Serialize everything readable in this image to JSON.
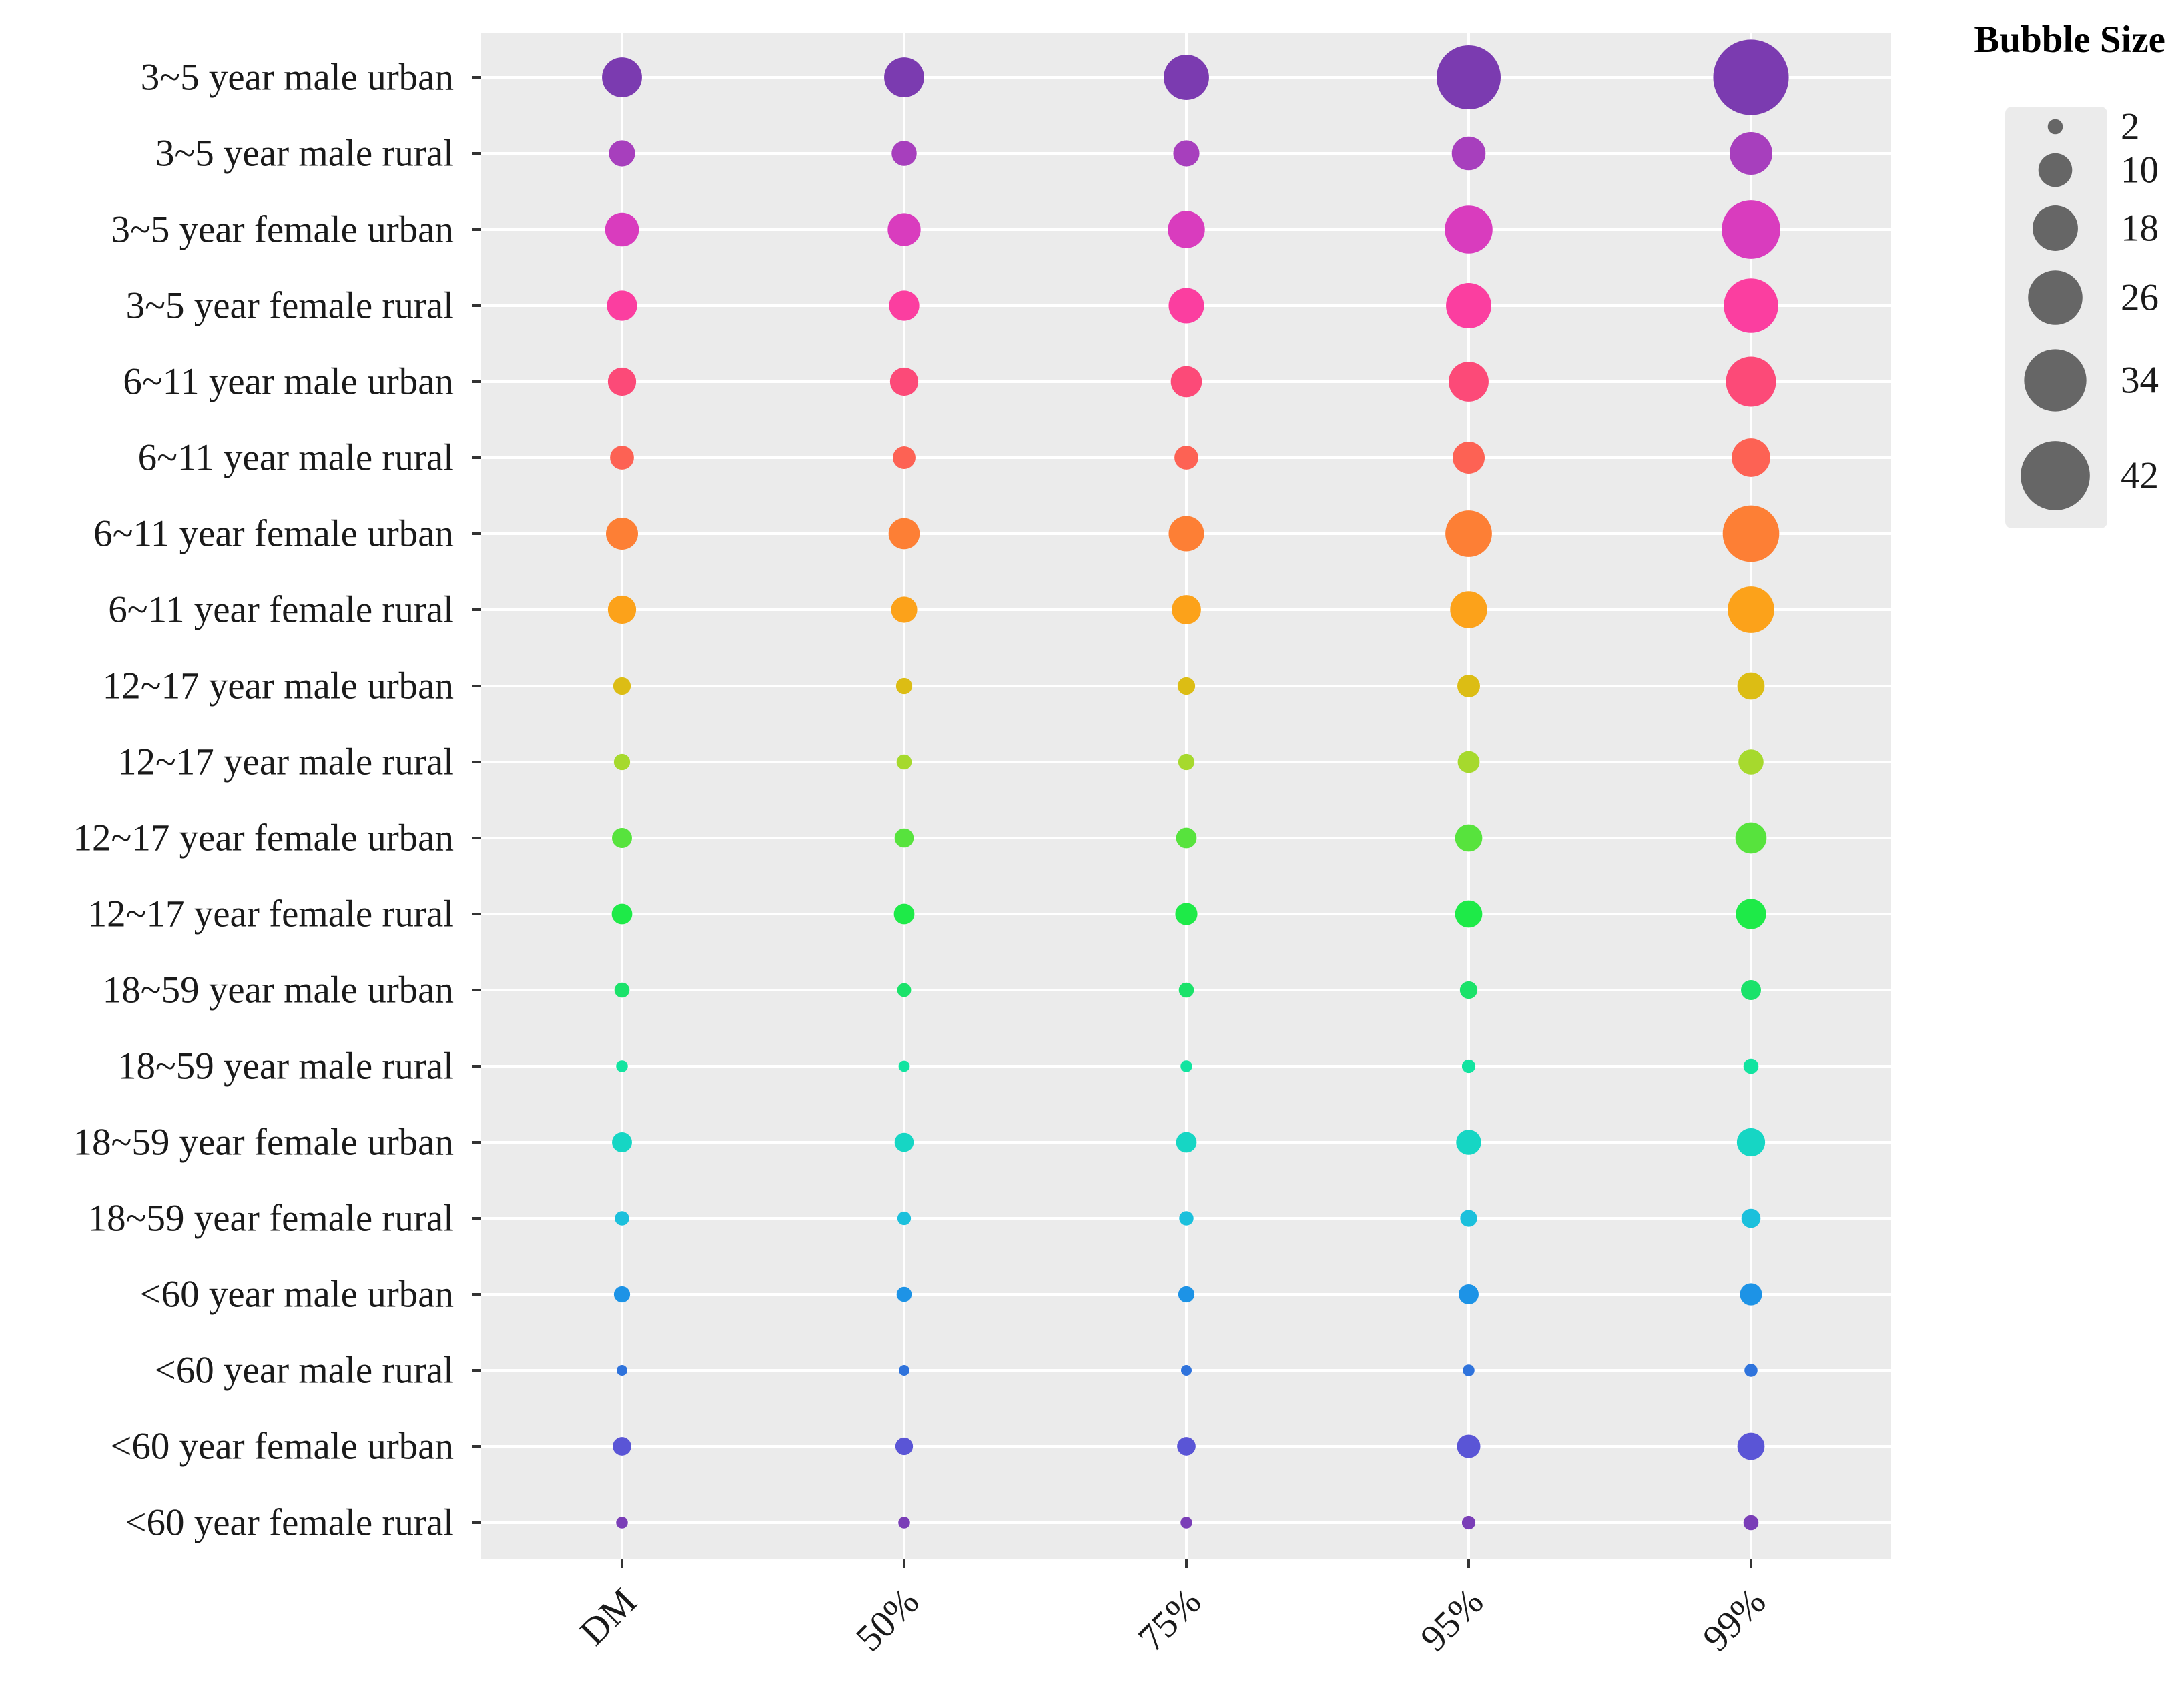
{
  "chart_data": {
    "type": "bubble",
    "title": "",
    "xlabel": "",
    "ylabel": "",
    "x_categories": [
      "DM",
      "50%",
      "75%",
      "95%",
      "99%"
    ],
    "y_categories": [
      "3~5 year male urban",
      "3~5 year male rural",
      "3~5 year female urban",
      "3~5 year female rural",
      "6~11 year male urban",
      "6~11 year male rural",
      "6~11 year female urban",
      "6~11 year female rural",
      "12~17 year male urban",
      "12~17 year male rural",
      "12~17 year female urban",
      "12~17 year female rural",
      "18~59 year male urban",
      "18~59 year male rural",
      "18~59 year female urban",
      "18~59 year female rural",
      "<60 year male urban",
      "<60 year male rural",
      "<60 year female urban",
      "<60 year female rural"
    ],
    "row_colors": [
      "#7b3bb0",
      "#a73fbd",
      "#d93cbe",
      "#fb3ea0",
      "#fc4a78",
      "#fd6254",
      "#fd7f35",
      "#fca21a",
      "#dcbd14",
      "#a6d92d",
      "#57e33d",
      "#1eea48",
      "#1be26a",
      "#12e4a0",
      "#16d6c4",
      "#1bc0dc",
      "#1d93e6",
      "#2f73dc",
      "#5a55d6",
      "#7a3eb7"
    ],
    "values": [
      [
        14,
        14,
        18,
        36,
        50
      ],
      [
        6,
        5.5,
        6,
        10,
        16
      ],
      [
        10,
        9.5,
        12,
        20,
        30
      ],
      [
        8,
        8,
        11,
        18,
        26
      ],
      [
        7,
        7,
        8.5,
        14,
        22
      ],
      [
        5,
        4.5,
        5,
        9,
        13
      ],
      [
        9,
        8.5,
        11,
        19,
        28
      ],
      [
        7,
        6,
        7.5,
        12,
        19
      ],
      [
        2.7,
        2.3,
        2.7,
        4.5,
        6.5
      ],
      [
        2.3,
        2.0,
        2.3,
        4.2,
        5.5
      ],
      [
        3.5,
        3.2,
        3.7,
        6.5,
        8.5
      ],
      [
        3.7,
        3.7,
        4.3,
        6.5,
        8
      ],
      [
        2.0,
        1.7,
        2.0,
        2.7,
        3.5
      ],
      [
        1.2,
        1.1,
        1.2,
        1.6,
        2.0
      ],
      [
        3.5,
        3.2,
        3.7,
        5.5,
        7
      ],
      [
        1.8,
        1.6,
        1.8,
        2.5,
        3.2
      ],
      [
        2.3,
        2.0,
        2.3,
        3.5,
        4.3
      ],
      [
        1.0,
        1.0,
        1.0,
        1.2,
        1.5
      ],
      [
        3.0,
        2.7,
        3.0,
        4.8,
        6.5
      ],
      [
        1.2,
        1.2,
        1.2,
        1.6,
        2.0
      ]
    ],
    "legend": {
      "title": "Bubble Size",
      "values": [
        2,
        10,
        18,
        26,
        34,
        42
      ],
      "labels": [
        "2",
        "10",
        "18",
        "26",
        "34",
        "42"
      ],
      "color": "#666666",
      "position": "right"
    },
    "background": "#ebebeb",
    "gridline_color": "#ffffff",
    "grid": true
  }
}
